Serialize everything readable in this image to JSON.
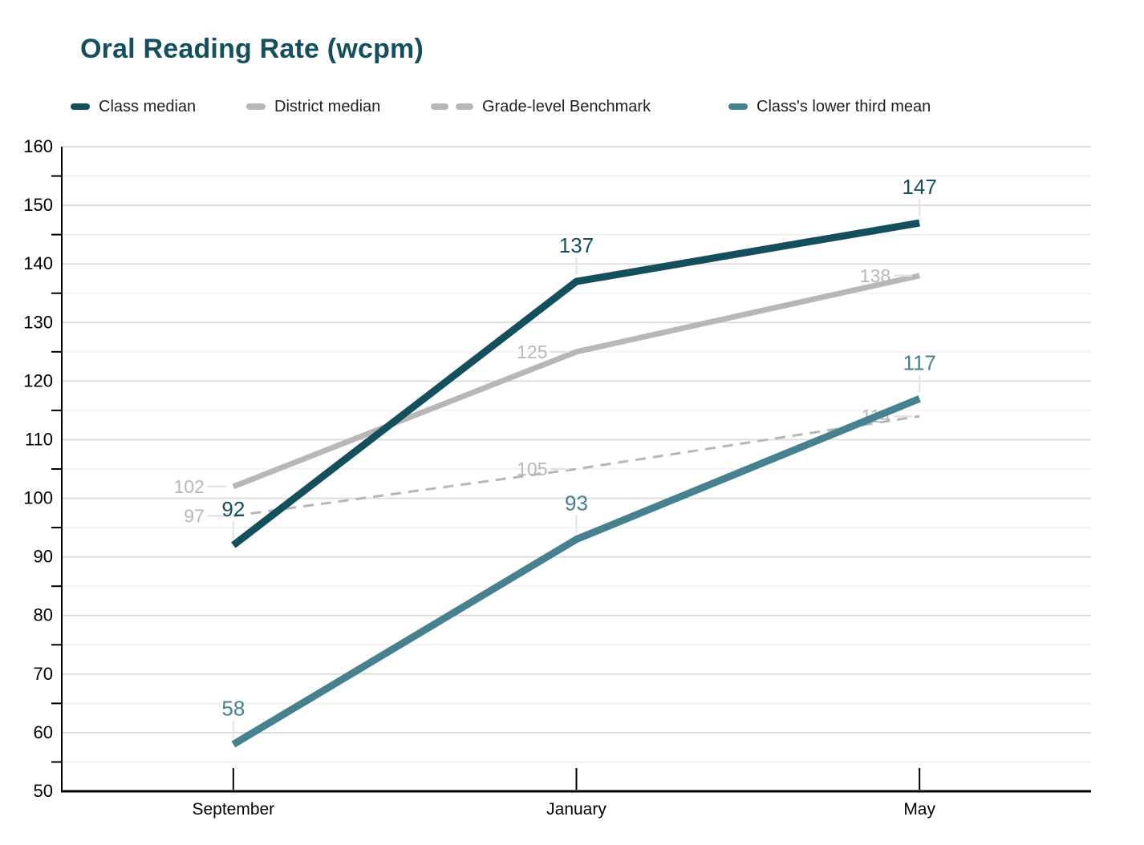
{
  "title": "Oral Reading Rate (wcpm)",
  "colors": {
    "title": "#134f5c",
    "class_median": "#134f5c",
    "district_median": "#b7b7b7",
    "benchmark": "#b7b7b7",
    "lower_third": "#45818e",
    "axis": "#000000",
    "grid_major": "#d9d9d9",
    "grid_minor": "#efefef",
    "label_connector": "#e3e3e3",
    "legend_text": "#212121"
  },
  "legend": [
    {
      "label": "Class median",
      "color": "#134f5c",
      "dashed": false
    },
    {
      "label": "District median",
      "color": "#b7b7b7",
      "dashed": false
    },
    {
      "label": "Grade-level Benchmark",
      "color": "#b7b7b7",
      "dashed": true
    },
    {
      "label": "Class's lower third mean",
      "color": "#45818e",
      "dashed": false
    }
  ],
  "chart_data": {
    "type": "line",
    "title": "Oral Reading Rate (wcpm)",
    "categories": [
      "September",
      "January",
      "May"
    ],
    "series": [
      {
        "name": "Class median",
        "values": [
          92,
          137,
          147
        ],
        "color": "#134f5c",
        "width": 9,
        "dashed": false,
        "label_position": "above",
        "label_size": 26
      },
      {
        "name": "District median",
        "values": [
          102,
          125,
          138
        ],
        "color": "#b7b7b7",
        "width": 7,
        "dashed": false,
        "label_position": "left",
        "label_size": 23
      },
      {
        "name": "Grade-level Benchmark",
        "values": [
          97,
          105,
          114
        ],
        "color": "#b7b7b7",
        "width": 3,
        "dashed": true,
        "label_position": "left",
        "label_size": 23
      },
      {
        "name": "Class's lower third mean",
        "values": [
          58,
          93,
          117
        ],
        "color": "#45818e",
        "width": 9,
        "dashed": false,
        "label_position": "above",
        "label_size": 26
      }
    ],
    "xlabel": "",
    "ylabel": "",
    "ylim": [
      50,
      160
    ],
    "ytick_step": 10,
    "ytick_minor_step": 5,
    "grid": true,
    "legend_position": "top",
    "data_labels": true
  }
}
